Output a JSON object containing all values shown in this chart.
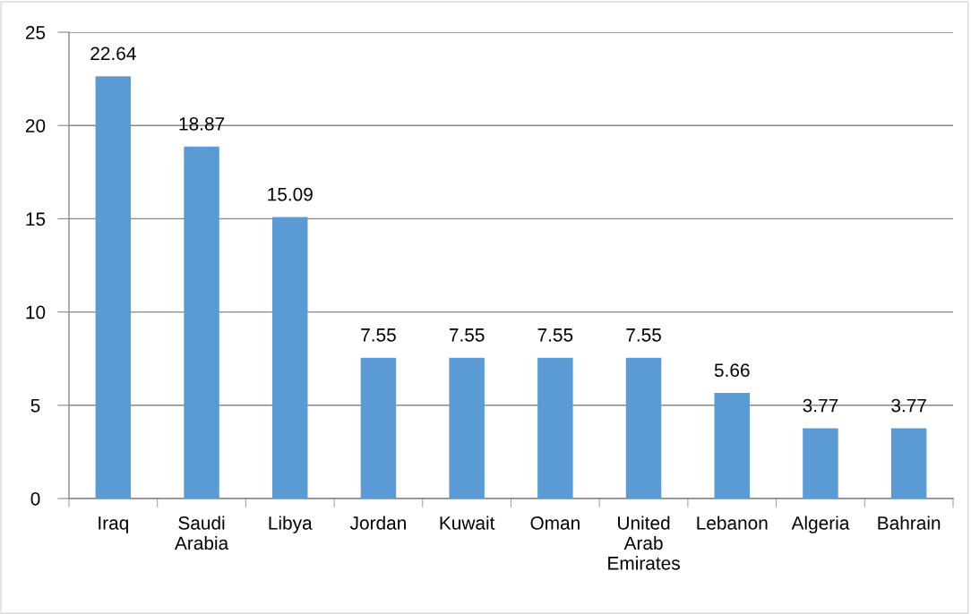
{
  "chart_data": {
    "type": "bar",
    "categories": [
      "Iraq",
      "Saudi Arabia",
      "Libya",
      "Jordan",
      "Kuwait",
      "Oman",
      "United Arab Emirates",
      "Lebanon",
      "Algeria",
      "Bahrain"
    ],
    "values": [
      22.64,
      18.87,
      15.09,
      7.55,
      7.55,
      7.55,
      7.55,
      5.66,
      3.77,
      3.77
    ],
    "color": "#5b9bd5",
    "ylim": [
      0,
      25
    ],
    "yticks": [
      0,
      5,
      10,
      15,
      20,
      25
    ],
    "grid": "y",
    "data_labels": true
  }
}
